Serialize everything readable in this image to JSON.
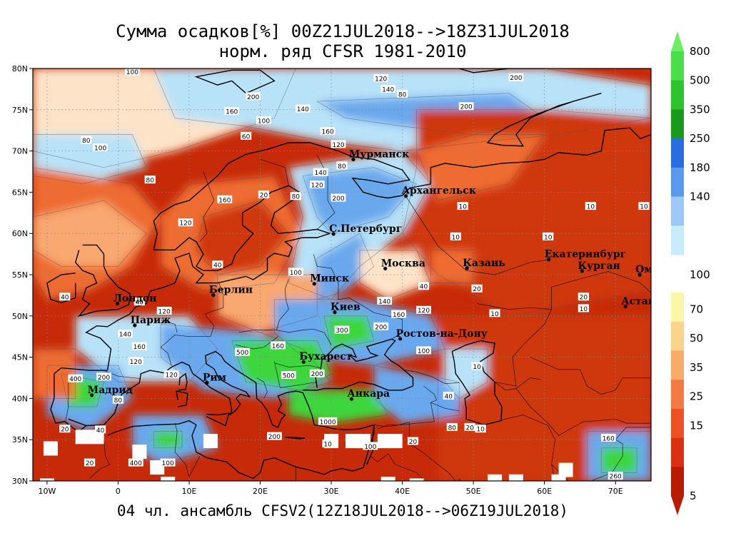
{
  "title_line1": "Сумма осадков[%] 00Z21JUL2018-->18Z31JUL2018",
  "title_line2": "норм. ряд CFSR 1981-2010",
  "footer": "04 чл. ансамбль CFSV2(12Z18JUL2018-->06Z19JUL2018)",
  "map_extent": {
    "lon_min": -12,
    "lon_max": 75,
    "lat_min": 30,
    "lat_max": 80
  },
  "lat_ticks": [
    {
      "value": 30,
      "label": "30N"
    },
    {
      "value": 35,
      "label": "35N"
    },
    {
      "value": 40,
      "label": "40N"
    },
    {
      "value": 45,
      "label": "45N"
    },
    {
      "value": 50,
      "label": "50N"
    },
    {
      "value": 55,
      "label": "55N"
    },
    {
      "value": 60,
      "label": "60N"
    },
    {
      "value": 65,
      "label": "65N"
    },
    {
      "value": 70,
      "label": "70N"
    },
    {
      "value": 75,
      "label": "75N"
    },
    {
      "value": 80,
      "label": "80N"
    }
  ],
  "lon_ticks": [
    {
      "value": -10,
      "label": "10W"
    },
    {
      "value": 0,
      "label": "0"
    },
    {
      "value": 10,
      "label": "10E"
    },
    {
      "value": 20,
      "label": "20E"
    },
    {
      "value": 30,
      "label": "30E"
    },
    {
      "value": 40,
      "label": "40E"
    },
    {
      "value": 50,
      "label": "50E"
    },
    {
      "value": 60,
      "label": "60E"
    },
    {
      "value": 70,
      "label": "70E"
    }
  ],
  "cities": [
    {
      "name": "Мурманск",
      "lon": 33.1,
      "lat": 68.97
    },
    {
      "name": "Архангельск",
      "lon": 40.5,
      "lat": 64.54
    },
    {
      "name": "С.Петербург",
      "lon": 30.3,
      "lat": 59.94
    },
    {
      "name": "Москва",
      "lon": 37.6,
      "lat": 55.75
    },
    {
      "name": "Казань",
      "lon": 49.1,
      "lat": 55.79
    },
    {
      "name": "Екатеринбург",
      "lon": 60.6,
      "lat": 56.84
    },
    {
      "name": "Курган",
      "lon": 65.3,
      "lat": 55.44
    },
    {
      "name": "Омск",
      "lon": 73.4,
      "lat": 54.99
    },
    {
      "name": "Астана",
      "lon": 71.4,
      "lat": 51.17
    },
    {
      "name": "Минск",
      "lon": 27.6,
      "lat": 53.9
    },
    {
      "name": "Берлин",
      "lon": 13.4,
      "lat": 52.52
    },
    {
      "name": "Лондон",
      "lon": -0.1,
      "lat": 51.5
    },
    {
      "name": "Париж",
      "lon": 2.35,
      "lat": 48.86
    },
    {
      "name": "Киев",
      "lon": 30.5,
      "lat": 50.45
    },
    {
      "name": "Ростов-на-Дону",
      "lon": 39.7,
      "lat": 47.23
    },
    {
      "name": "Бухарест",
      "lon": 26.1,
      "lat": 44.43
    },
    {
      "name": "Рим",
      "lon": 12.5,
      "lat": 41.9
    },
    {
      "name": "Мадрид",
      "lon": -3.7,
      "lat": 40.4
    },
    {
      "name": "Анкара",
      "lon": 32.85,
      "lat": 39.93
    }
  ],
  "contour_labels": [
    {
      "text": "100",
      "lon": 2,
      "lat": 79.6
    },
    {
      "text": "120",
      "lon": 37,
      "lat": 78.8
    },
    {
      "text": "140",
      "lon": 38,
      "lat": 77.5
    },
    {
      "text": "200",
      "lon": 56,
      "lat": 78.9
    },
    {
      "text": "200",
      "lon": 19,
      "lat": 76.6
    },
    {
      "text": "200",
      "lon": 49,
      "lat": 75.4
    },
    {
      "text": "160",
      "lon": 16,
      "lat": 74.8
    },
    {
      "text": "140",
      "lon": 26,
      "lat": 75.1
    },
    {
      "text": "100",
      "lon": 20.5,
      "lat": 73.7
    },
    {
      "text": "160",
      "lon": 29.5,
      "lat": 72.4
    },
    {
      "text": "80",
      "lon": -4.5,
      "lat": 71.3
    },
    {
      "text": "100",
      "lon": -2.5,
      "lat": 70.4
    },
    {
      "text": "80",
      "lon": 4.5,
      "lat": 66.5
    },
    {
      "text": "60",
      "lon": 18,
      "lat": 71.8
    },
    {
      "text": "80",
      "lon": 40,
      "lat": 76.9
    },
    {
      "text": "120",
      "lon": 31,
      "lat": 70.8
    },
    {
      "text": "80",
      "lon": 31.5,
      "lat": 68.2
    },
    {
      "text": "140",
      "lon": 28.5,
      "lat": 67.4
    },
    {
      "text": "120",
      "lon": 28,
      "lat": 65.9
    },
    {
      "text": "20",
      "lon": 20.5,
      "lat": 64.7
    },
    {
      "text": "80",
      "lon": 25,
      "lat": 64.5
    },
    {
      "text": "160",
      "lon": 15,
      "lat": 64.1
    },
    {
      "text": "200",
      "lon": 31,
      "lat": 64.3
    },
    {
      "text": "10",
      "lon": 48.5,
      "lat": 63.3
    },
    {
      "text": "10",
      "lon": 66.5,
      "lat": 63.3
    },
    {
      "text": "10",
      "lon": 74,
      "lat": 63.3
    },
    {
      "text": "120",
      "lon": 9.5,
      "lat": 61.3
    },
    {
      "text": "10",
      "lon": 47.5,
      "lat": 59.6
    },
    {
      "text": "10",
      "lon": 60.5,
      "lat": 59.6
    },
    {
      "text": "40",
      "lon": 14,
      "lat": 56.2
    },
    {
      "text": "40",
      "lon": -7.5,
      "lat": 52.3
    },
    {
      "text": "40",
      "lon": 3,
      "lat": 51.7
    },
    {
      "text": "100",
      "lon": 25,
      "lat": 55.3
    },
    {
      "text": "40",
      "lon": 43,
      "lat": 53.6
    },
    {
      "text": "20",
      "lon": 50.5,
      "lat": 53.3
    },
    {
      "text": "20",
      "lon": 65.5,
      "lat": 52.3
    },
    {
      "text": "10",
      "lon": 65.5,
      "lat": 50.9
    },
    {
      "text": "140",
      "lon": 37.5,
      "lat": 51.8
    },
    {
      "text": "120",
      "lon": 6.5,
      "lat": 50.6
    },
    {
      "text": "160",
      "lon": 39.5,
      "lat": 50.2
    },
    {
      "text": "120",
      "lon": 43,
      "lat": 50.7
    },
    {
      "text": "10",
      "lon": 53,
      "lat": 50.3
    },
    {
      "text": "140",
      "lon": 1,
      "lat": 47.8
    },
    {
      "text": "300",
      "lon": 31.5,
      "lat": 48.3
    },
    {
      "text": "200",
      "lon": 37,
      "lat": 48.7
    },
    {
      "text": "500",
      "lon": 17.5,
      "lat": 45.6
    },
    {
      "text": "160",
      "lon": 3,
      "lat": 46.3
    },
    {
      "text": "100",
      "lon": 43,
      "lat": 45.8
    },
    {
      "text": "160",
      "lon": 22.5,
      "lat": 46.4
    },
    {
      "text": "120",
      "lon": 2.5,
      "lat": 44.5
    },
    {
      "text": "500",
      "lon": 24,
      "lat": 42.8
    },
    {
      "text": "400",
      "lon": -6,
      "lat": 42.4
    },
    {
      "text": "200",
      "lon": -2,
      "lat": 42.6
    },
    {
      "text": "120",
      "lon": 7.5,
      "lat": 42.9
    },
    {
      "text": "200",
      "lon": 28,
      "lat": 43
    },
    {
      "text": "40",
      "lon": 46.5,
      "lat": 40.3
    },
    {
      "text": "10",
      "lon": 50.5,
      "lat": 43.9
    },
    {
      "text": "80",
      "lon": 0,
      "lat": 39.8
    },
    {
      "text": "20",
      "lon": -7.5,
      "lat": 36.3
    },
    {
      "text": "40",
      "lon": -2.5,
      "lat": 36.2
    },
    {
      "text": "10",
      "lon": 29.5,
      "lat": 34.5
    },
    {
      "text": "1000",
      "lon": 29.5,
      "lat": 37.2
    },
    {
      "text": "200",
      "lon": 22,
      "lat": 35.4
    },
    {
      "text": "80",
      "lon": 47,
      "lat": 36.5
    },
    {
      "text": "20",
      "lon": 49.5,
      "lat": 36.5
    },
    {
      "text": "10",
      "lon": 51,
      "lat": 36.3
    },
    {
      "text": "20",
      "lon": 41.5,
      "lat": 34.8
    },
    {
      "text": "100",
      "lon": 35.5,
      "lat": 34.2
    },
    {
      "text": "160",
      "lon": 69,
      "lat": 35.2
    },
    {
      "text": "20",
      "lon": -4,
      "lat": 32.2
    },
    {
      "text": "400",
      "lon": 2.5,
      "lat": 32.2
    },
    {
      "text": "100",
      "lon": 7,
      "lat": 32.2
    },
    {
      "text": "260",
      "lon": 70,
      "lat": 30.6
    }
  ],
  "colorbar": {
    "upper": [
      {
        "label": "800",
        "color": "#4ade4a"
      },
      {
        "label": "500",
        "color": "#2ec42e"
      },
      {
        "label": "350",
        "color": "#1a9a1a"
      },
      {
        "label": "250",
        "color": "#2a6de0"
      },
      {
        "label": "180",
        "color": "#5b98ee"
      },
      {
        "label": "140",
        "color": "#9dc8f6"
      },
      {
        "label": "",
        "color": "#c8ecfb"
      }
    ],
    "middle_label": "100",
    "lower": [
      {
        "label": "70",
        "color": "#fcf6a8"
      },
      {
        "label": "50",
        "color": "#fcd38a"
      },
      {
        "label": "35",
        "color": "#f9ab6a"
      },
      {
        "label": "25",
        "color": "#f47a44"
      },
      {
        "label": "15",
        "color": "#ec5224"
      },
      {
        "label": "",
        "color": "#d83212"
      },
      {
        "label": "5",
        "color": "#b81c00"
      }
    ],
    "top_arrow_color": "#6ced62",
    "bottom_arrow_color": "#b81c00"
  },
  "palette": {
    "ocean_red": "#c62a08",
    "land_red": "#cf3810",
    "orange": "#ee6c30",
    "light_orange": "#f8a870",
    "pale": "#fde3c8",
    "light_blue": "#b8e2f8",
    "blue": "#6aa8ee",
    "deep_blue": "#3a7ae0",
    "green": "#3ed63e",
    "dark_green": "#1a9a1a"
  }
}
